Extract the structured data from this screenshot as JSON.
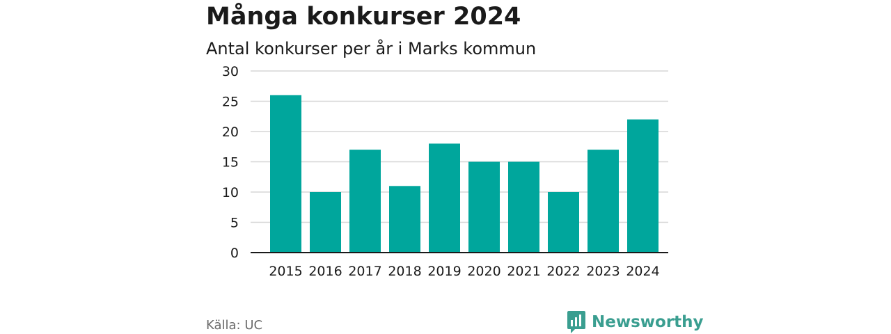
{
  "title": "Många konkurser 2024",
  "subtitle": "Antal konkurser per år i Marks kommun",
  "source": "Källa: UC",
  "brand": {
    "name": "Newsworthy",
    "color": "#3a9e90",
    "icon": "bar-chart-bubble-icon"
  },
  "colors": {
    "bar": "#00a69c",
    "grid": "#d6d6d6",
    "axis": "#1a1a1a",
    "text": "#1a1a1a",
    "source": "#6b6b6b"
  },
  "chart_data": {
    "type": "bar",
    "categories": [
      "2015",
      "2016",
      "2017",
      "2018",
      "2019",
      "2020",
      "2021",
      "2022",
      "2023",
      "2024"
    ],
    "values": [
      26,
      10,
      17,
      11,
      18,
      15,
      15,
      10,
      17,
      22
    ],
    "yticks": [
      0,
      5,
      10,
      15,
      20,
      25,
      30
    ],
    "ylim": [
      0,
      30
    ],
    "grid": true,
    "legend": "none"
  }
}
